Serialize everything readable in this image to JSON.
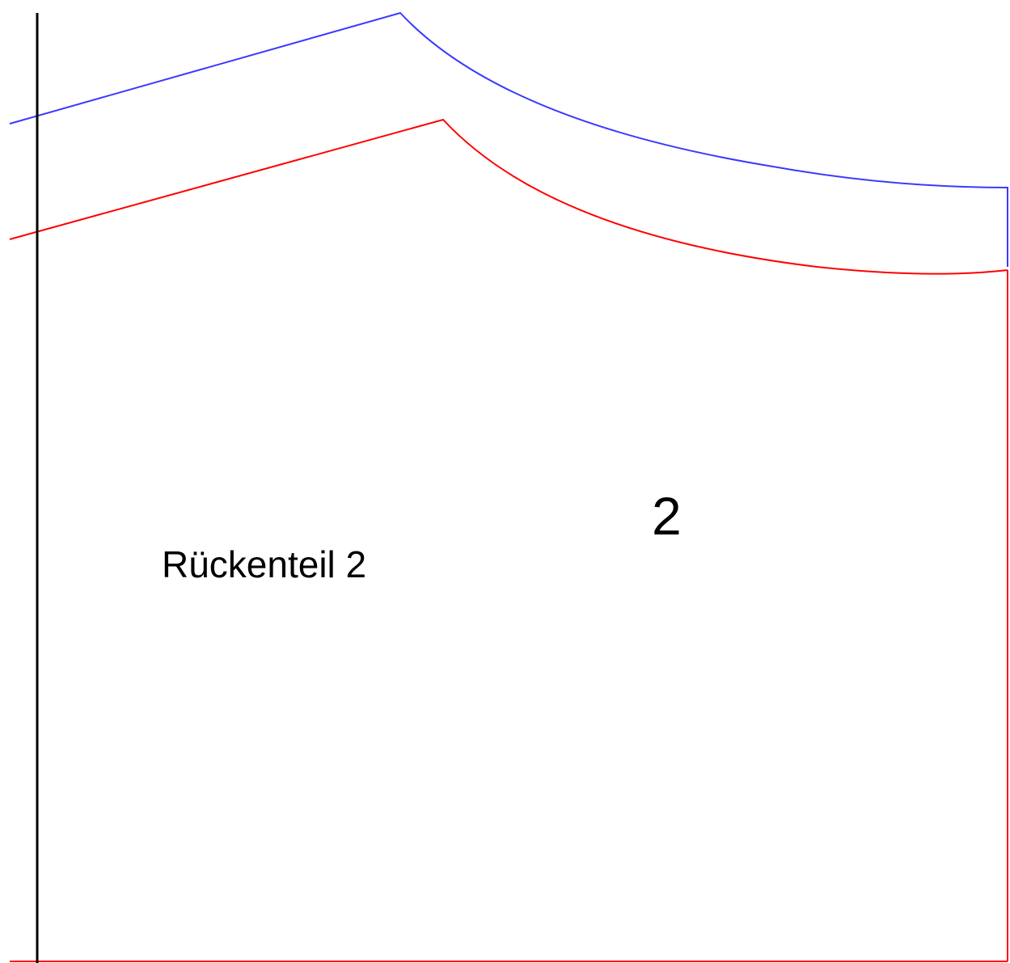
{
  "pattern_piece": {
    "label": "Rückenteil 2",
    "number": "2"
  },
  "colors": {
    "background": "#ffffff",
    "fold_line": "#000000",
    "cutting_line": "#ff0000",
    "seam_allowance_line": "#3a3aff",
    "text": "#000000"
  }
}
